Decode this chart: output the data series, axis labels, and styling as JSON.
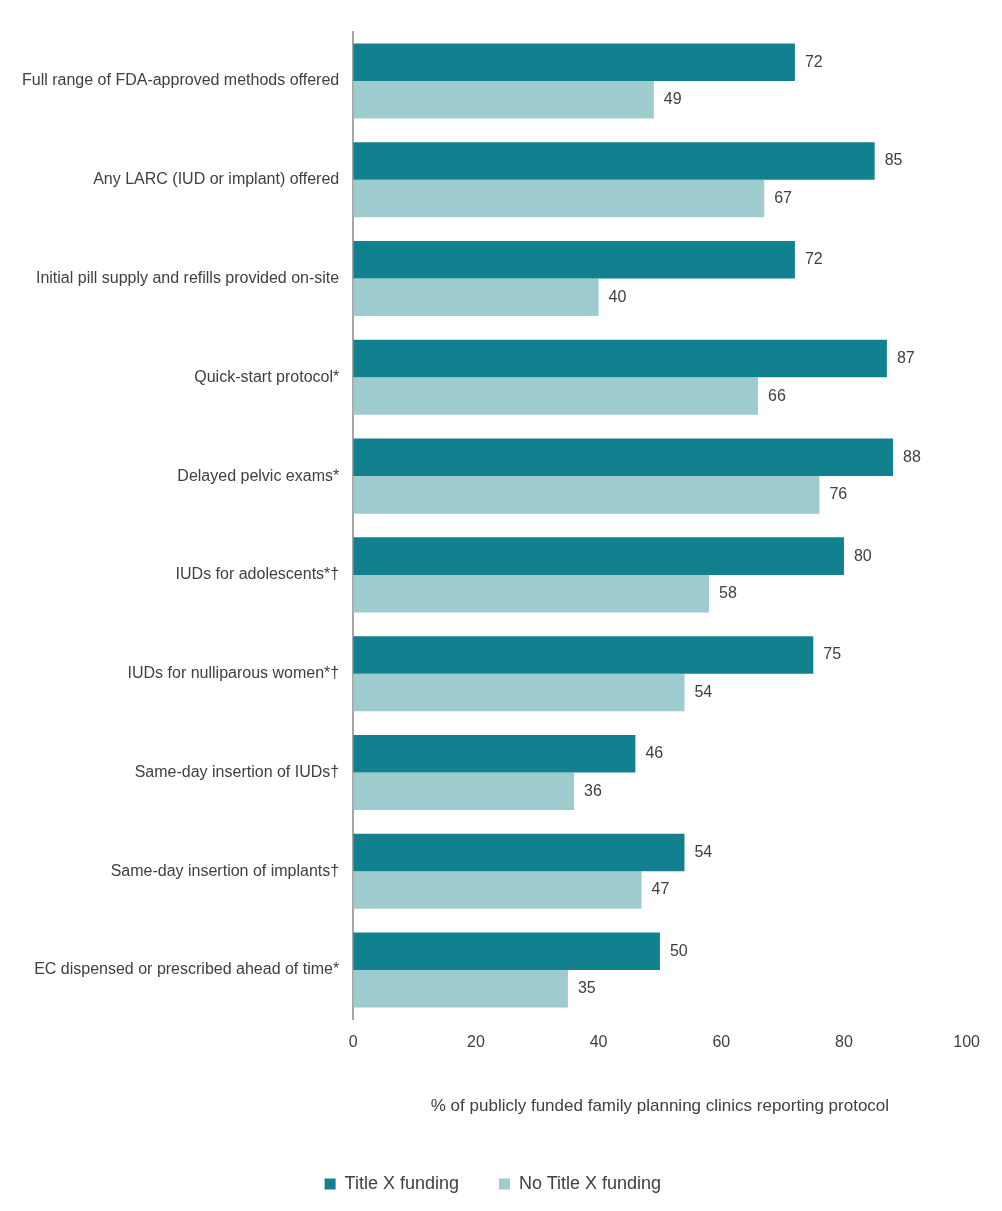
{
  "chart_data": {
    "type": "bar",
    "orientation": "horizontal",
    "xlabel": "% of publicly funded family planning clinics reporting protocol",
    "categories": [
      "Full range of FDA-approved methods offered",
      "Any LARC (IUD or implant) offered",
      "Initial pill supply and refills provided on-site",
      "Quick-start protocol*",
      "Delayed pelvic exams*",
      "IUDs for adolescents*†",
      "IUDs for nulliparous women*†",
      "Same-day insertion of IUDs†",
      "Same-day insertion of implants†",
      "EC dispensed or prescribed ahead of time*"
    ],
    "series": [
      {
        "name": "Title X funding",
        "color": "#12818f",
        "values": [
          72,
          85,
          72,
          87,
          88,
          80,
          75,
          46,
          54,
          50
        ]
      },
      {
        "name": "No Title X funding",
        "color": "#9dcbce",
        "values": [
          49,
          67,
          40,
          66,
          76,
          58,
          54,
          36,
          47,
          35
        ]
      }
    ],
    "xlim": [
      0,
      100
    ],
    "xticks": [
      0,
      20,
      40,
      60,
      80,
      100
    ],
    "grid": false,
    "legend": "bottom",
    "data_labels": true
  }
}
